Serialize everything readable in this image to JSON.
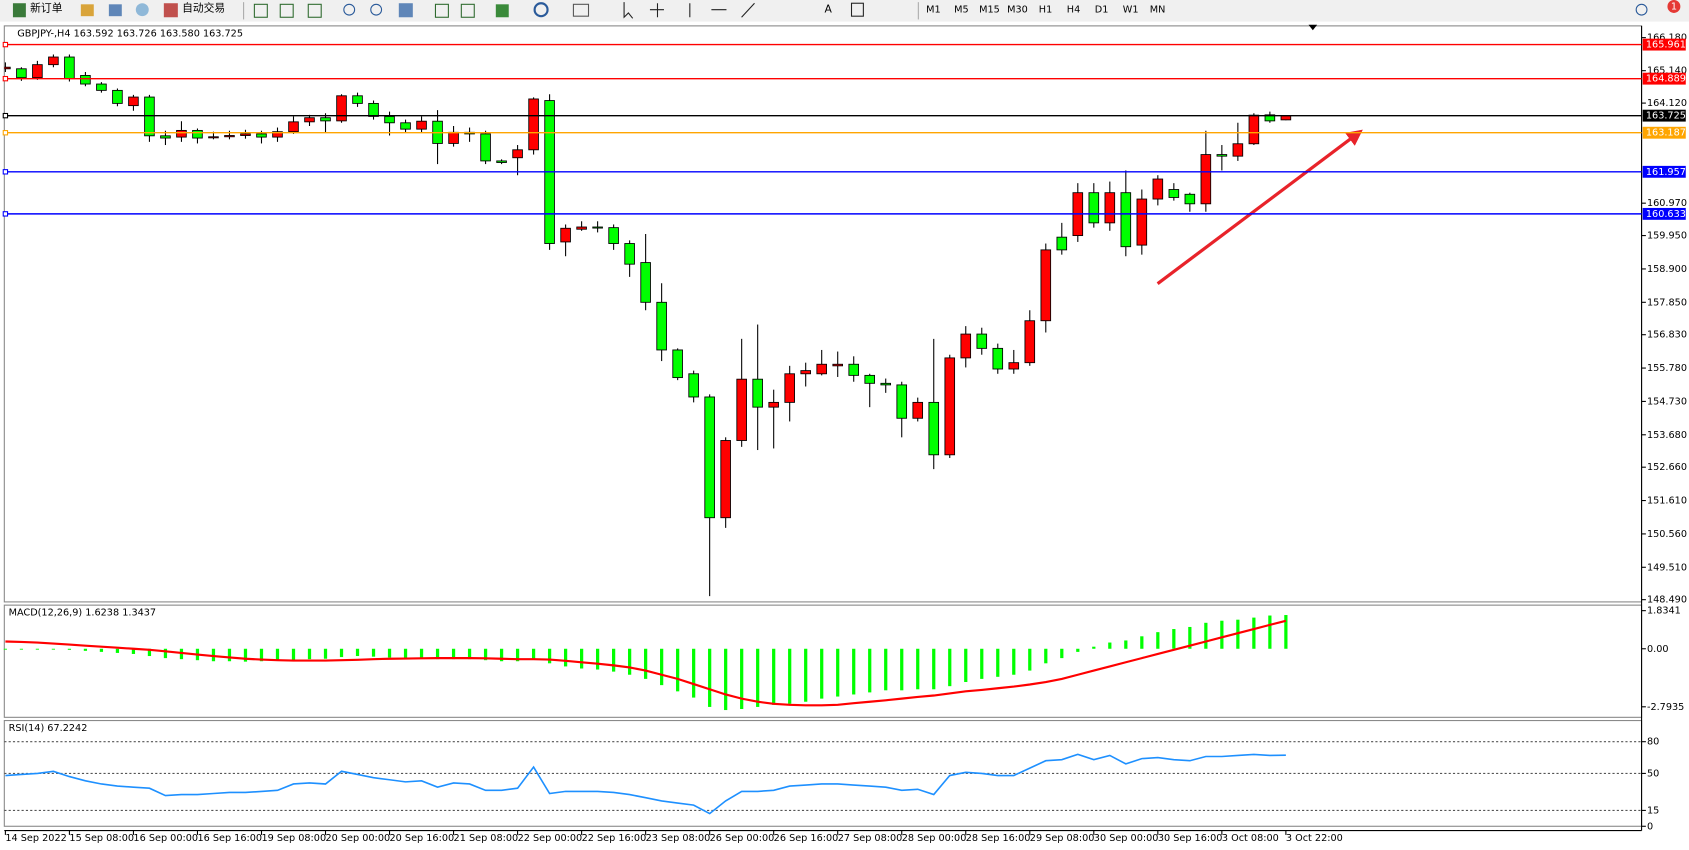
{
  "toolbar": {
    "new_order": "新订单",
    "auto_trading": "自动交易",
    "timeframes": [
      "M1",
      "M5",
      "M15",
      "M30",
      "H1",
      "H4",
      "D1",
      "W1",
      "MN"
    ],
    "notification_count": "1"
  },
  "chart_data": [
    {
      "type": "candlestick",
      "title": "GBPJPY-,H4  163.592 163.726 163.580 163.725",
      "categories": [
        "14 Sep 2022",
        null,
        null,
        null,
        "15 Sep 08:00",
        null,
        null,
        null,
        "16 Sep 00:00",
        null,
        null,
        null,
        "16 Sep 16:00",
        null,
        null,
        null,
        "19 Sep 08:00",
        null,
        null,
        null,
        "20 Sep 00:00",
        null,
        null,
        null,
        "20 Sep 16:00",
        null,
        null,
        null,
        "21 Sep 08:00",
        null,
        null,
        null,
        "22 Sep 00:00",
        null,
        null,
        null,
        "22 Sep 16:00",
        null,
        null,
        null,
        "23 Sep 08:00",
        null,
        null,
        null,
        "26 Sep 00:00",
        null,
        null,
        null,
        "26 Sep 16:00",
        null,
        null,
        null,
        "27 Sep 08:00",
        null,
        null,
        null,
        "28 Sep 00:00",
        null,
        null,
        null,
        "28 Sep 16:00",
        null,
        null,
        null,
        "29 Sep 08:00",
        null,
        null,
        null,
        "30 Sep 00:00",
        null,
        null,
        null,
        "30 Sep 16:00",
        null,
        null,
        null,
        "3 Oct 08:00",
        null,
        null,
        null,
        "3 Oct 22:00"
      ],
      "open": [
        165.2,
        165.2,
        164.92,
        165.33,
        165.57,
        164.99,
        164.72,
        164.52,
        164.04,
        164.31,
        163.09,
        163.05,
        163.26,
        163.05,
        163.06,
        163.1,
        163.15,
        163.05,
        163.22,
        163.53,
        163.66,
        163.56,
        164.35,
        164.11,
        163.7,
        163.5,
        163.3,
        163.55,
        162.85,
        163.2,
        163.15,
        162.3,
        162.4,
        162.65,
        164.2,
        159.75,
        160.15,
        160.22,
        160.2,
        159.7,
        159.1,
        157.85,
        156.35,
        155.6,
        154.87,
        151.07,
        153.5,
        155.43,
        154.55,
        154.7,
        155.6,
        155.6,
        155.85,
        155.9,
        155.55,
        155.3,
        155.25,
        154.2,
        154.7,
        153.05,
        156.1,
        156.85,
        156.4,
        155.75,
        155.95,
        157.27,
        159.9,
        159.95,
        161.3,
        160.35,
        161.3,
        159.65,
        161.1,
        161.4,
        161.25,
        160.95,
        162.5,
        162.45,
        162.84,
        163.75,
        163.592
      ],
      "high": [
        165.4,
        165.25,
        165.45,
        165.65,
        165.65,
        165.1,
        164.78,
        164.58,
        164.38,
        164.38,
        163.25,
        163.55,
        163.32,
        163.22,
        163.25,
        163.28,
        163.25,
        163.35,
        163.7,
        163.75,
        163.8,
        164.4,
        164.45,
        164.2,
        163.85,
        163.6,
        163.7,
        163.9,
        163.4,
        163.35,
        163.25,
        162.35,
        162.8,
        164.3,
        164.4,
        160.3,
        160.4,
        160.4,
        160.3,
        159.8,
        160.0,
        158.45,
        156.4,
        155.7,
        154.95,
        153.6,
        156.7,
        157.15,
        155.1,
        155.85,
        155.95,
        156.35,
        156.3,
        156.15,
        155.6,
        155.45,
        155.35,
        154.85,
        156.7,
        156.2,
        157.1,
        157.05,
        156.55,
        156.35,
        157.6,
        159.7,
        160.35,
        161.6,
        161.6,
        161.65,
        162.0,
        161.4,
        161.85,
        161.6,
        161.3,
        163.25,
        162.8,
        163.5,
        163.8,
        163.85,
        163.726
      ],
      "low": [
        165.1,
        164.82,
        164.85,
        165.25,
        164.8,
        164.65,
        164.45,
        164.02,
        163.88,
        162.9,
        162.8,
        162.9,
        162.85,
        162.98,
        162.98,
        163.0,
        162.85,
        162.9,
        163.15,
        163.4,
        163.2,
        163.5,
        164.0,
        163.6,
        163.1,
        163.2,
        163.2,
        162.2,
        162.75,
        162.9,
        162.2,
        162.2,
        161.85,
        162.5,
        159.5,
        159.3,
        160.1,
        160.05,
        159.5,
        158.65,
        157.6,
        156.0,
        155.4,
        154.7,
        148.6,
        150.75,
        153.3,
        153.2,
        153.25,
        154.1,
        155.2,
        155.55,
        155.5,
        155.35,
        154.55,
        155.0,
        153.6,
        154.1,
        152.6,
        152.95,
        155.8,
        156.2,
        155.6,
        155.6,
        155.85,
        156.9,
        159.35,
        159.75,
        160.2,
        160.1,
        159.3,
        159.35,
        160.9,
        161.05,
        160.7,
        160.7,
        162.0,
        162.3,
        162.8,
        163.5,
        163.58
      ],
      "close": [
        165.25,
        164.92,
        165.33,
        165.57,
        164.89,
        164.72,
        164.52,
        164.11,
        164.31,
        163.09,
        163.02,
        163.26,
        163.02,
        163.06,
        163.1,
        163.15,
        163.05,
        163.22,
        163.53,
        163.66,
        163.56,
        164.35,
        164.11,
        163.7,
        163.5,
        163.3,
        163.55,
        162.85,
        163.2,
        163.15,
        162.3,
        162.25,
        162.65,
        164.25,
        159.7,
        160.18,
        160.22,
        160.2,
        159.7,
        159.05,
        157.85,
        156.35,
        155.48,
        154.87,
        151.07,
        153.5,
        155.43,
        154.55,
        154.7,
        155.6,
        155.7,
        155.9,
        155.9,
        155.55,
        155.3,
        155.25,
        154.2,
        154.7,
        153.05,
        156.1,
        156.85,
        156.4,
        155.75,
        155.95,
        157.27,
        159.5,
        159.5,
        161.3,
        160.35,
        161.3,
        159.6,
        161.1,
        161.73,
        161.15,
        160.95,
        162.5,
        162.45,
        162.84,
        163.74,
        163.56,
        163.725
      ],
      "up_color": "#ff0000",
      "down_color": "#00ff00",
      "ylim": [
        148.42,
        166.55
      ],
      "yticks": [
        {
          "value": 166.18,
          "label": "166.180"
        },
        {
          "value": 165.14,
          "label": "165.140"
        },
        {
          "value": 164.12,
          "label": "164.120"
        },
        {
          "value": 160.97,
          "label": "160.970"
        },
        {
          "value": 159.95,
          "label": "159.950"
        },
        {
          "value": 158.9,
          "label": "158.900"
        },
        {
          "value": 157.85,
          "label": "157.850"
        },
        {
          "value": 156.83,
          "label": "156.830"
        },
        {
          "value": 155.78,
          "label": "155.780"
        },
        {
          "value": 154.73,
          "label": "154.730"
        },
        {
          "value": 153.68,
          "label": "153.680"
        },
        {
          "value": 152.66,
          "label": "152.660"
        },
        {
          "value": 151.61,
          "label": "151.610"
        },
        {
          "value": 150.56,
          "label": "150.560"
        },
        {
          "value": 149.51,
          "label": "149.510"
        },
        {
          "value": 148.49,
          "label": "148.490"
        }
      ],
      "levels": [
        {
          "value": 165.961,
          "color": "#ff0000"
        },
        {
          "value": 164.889,
          "color": "#ff0000"
        },
        {
          "value": 163.725,
          "color": "#000000"
        },
        {
          "value": 163.187,
          "color": "#ffa500"
        },
        {
          "value": 161.957,
          "color": "#0000ff"
        },
        {
          "value": 160.633,
          "color": "#0000ff"
        }
      ],
      "grid": false
    },
    {
      "type": "macd",
      "title": "MACD(12,26,9) 1.6238 1.3437",
      "ylim": [
        -3.3,
        2.1
      ],
      "yticks": [
        1.8341,
        {
          "value": 0,
          "label": "0.00"
        },
        -2.7935
      ],
      "series": [
        {
          "color": "#00ff00",
          "values": [
            -0.02,
            -0.03,
            -0.03,
            -0.02,
            -0.05,
            -0.1,
            -0.15,
            -0.2,
            -0.25,
            -0.35,
            -0.45,
            -0.5,
            -0.55,
            -0.6,
            -0.6,
            -0.62,
            -0.6,
            -0.58,
            -0.55,
            -0.5,
            -0.48,
            -0.4,
            -0.35,
            -0.38,
            -0.42,
            -0.45,
            -0.45,
            -0.5,
            -0.5,
            -0.5,
            -0.55,
            -0.6,
            -0.6,
            -0.5,
            -0.7,
            -0.85,
            -0.95,
            -1.0,
            -1.1,
            -1.25,
            -1.45,
            -1.75,
            -2.05,
            -2.35,
            -2.8,
            -2.95,
            -2.9,
            -2.8,
            -2.7,
            -2.65,
            -2.55,
            -2.4,
            -2.3,
            -2.2,
            -2.1,
            -2.0,
            -2.0,
            -1.95,
            -1.95,
            -1.8,
            -1.6,
            -1.45,
            -1.35,
            -1.25,
            -1.05,
            -0.7,
            -0.45,
            -0.15,
            0.1,
            0.3,
            0.4,
            0.6,
            0.8,
            0.95,
            1.05,
            1.25,
            1.35,
            1.4,
            1.5,
            1.6,
            1.6238
          ]
        },
        {
          "color": "#ff0000",
          "values": [
            0.35,
            0.33,
            0.3,
            0.25,
            0.2,
            0.15,
            0.1,
            0.05,
            0.0,
            -0.05,
            -0.12,
            -0.2,
            -0.28,
            -0.35,
            -0.42,
            -0.48,
            -0.52,
            -0.55,
            -0.57,
            -0.57,
            -0.57,
            -0.55,
            -0.53,
            -0.5,
            -0.48,
            -0.47,
            -0.46,
            -0.45,
            -0.45,
            -0.45,
            -0.46,
            -0.48,
            -0.5,
            -0.5,
            -0.52,
            -0.58,
            -0.65,
            -0.72,
            -0.8,
            -0.9,
            -1.05,
            -1.25,
            -1.45,
            -1.7,
            -1.95,
            -2.2,
            -2.4,
            -2.55,
            -2.65,
            -2.7,
            -2.72,
            -2.72,
            -2.7,
            -2.62,
            -2.55,
            -2.48,
            -2.4,
            -2.32,
            -2.25,
            -2.15,
            -2.05,
            -1.98,
            -1.9,
            -1.82,
            -1.72,
            -1.6,
            -1.45,
            -1.25,
            -1.05,
            -0.85,
            -0.65,
            -0.45,
            -0.25,
            -0.05,
            0.15,
            0.35,
            0.55,
            0.75,
            0.95,
            1.15,
            1.3437
          ]
        }
      ]
    },
    {
      "type": "line",
      "title": "RSI(14) 67.2242",
      "ylim": [
        0,
        100
      ],
      "yticks": [
        80,
        50,
        15,
        0
      ],
      "levels": [
        80,
        50,
        15
      ],
      "series": [
        {
          "color": "#1e90ff",
          "values": [
            48,
            49,
            50,
            52,
            47,
            43,
            40,
            38,
            37,
            36,
            29,
            30,
            30,
            31,
            32,
            32,
            33,
            34,
            40,
            41,
            40,
            52,
            49,
            46,
            44,
            42,
            43,
            37,
            41,
            40,
            34,
            34,
            36,
            56,
            31,
            33,
            33,
            33,
            32,
            30,
            27,
            24,
            22,
            20,
            12,
            24,
            33,
            33,
            34,
            38,
            39,
            40,
            40,
            39,
            38,
            37,
            34,
            35,
            30,
            48,
            51,
            50,
            48,
            48,
            55,
            62,
            63,
            68,
            63,
            67,
            59,
            64,
            65,
            63,
            62,
            66,
            66,
            67,
            68,
            67,
            67.2242
          ]
        }
      ]
    }
  ]
}
